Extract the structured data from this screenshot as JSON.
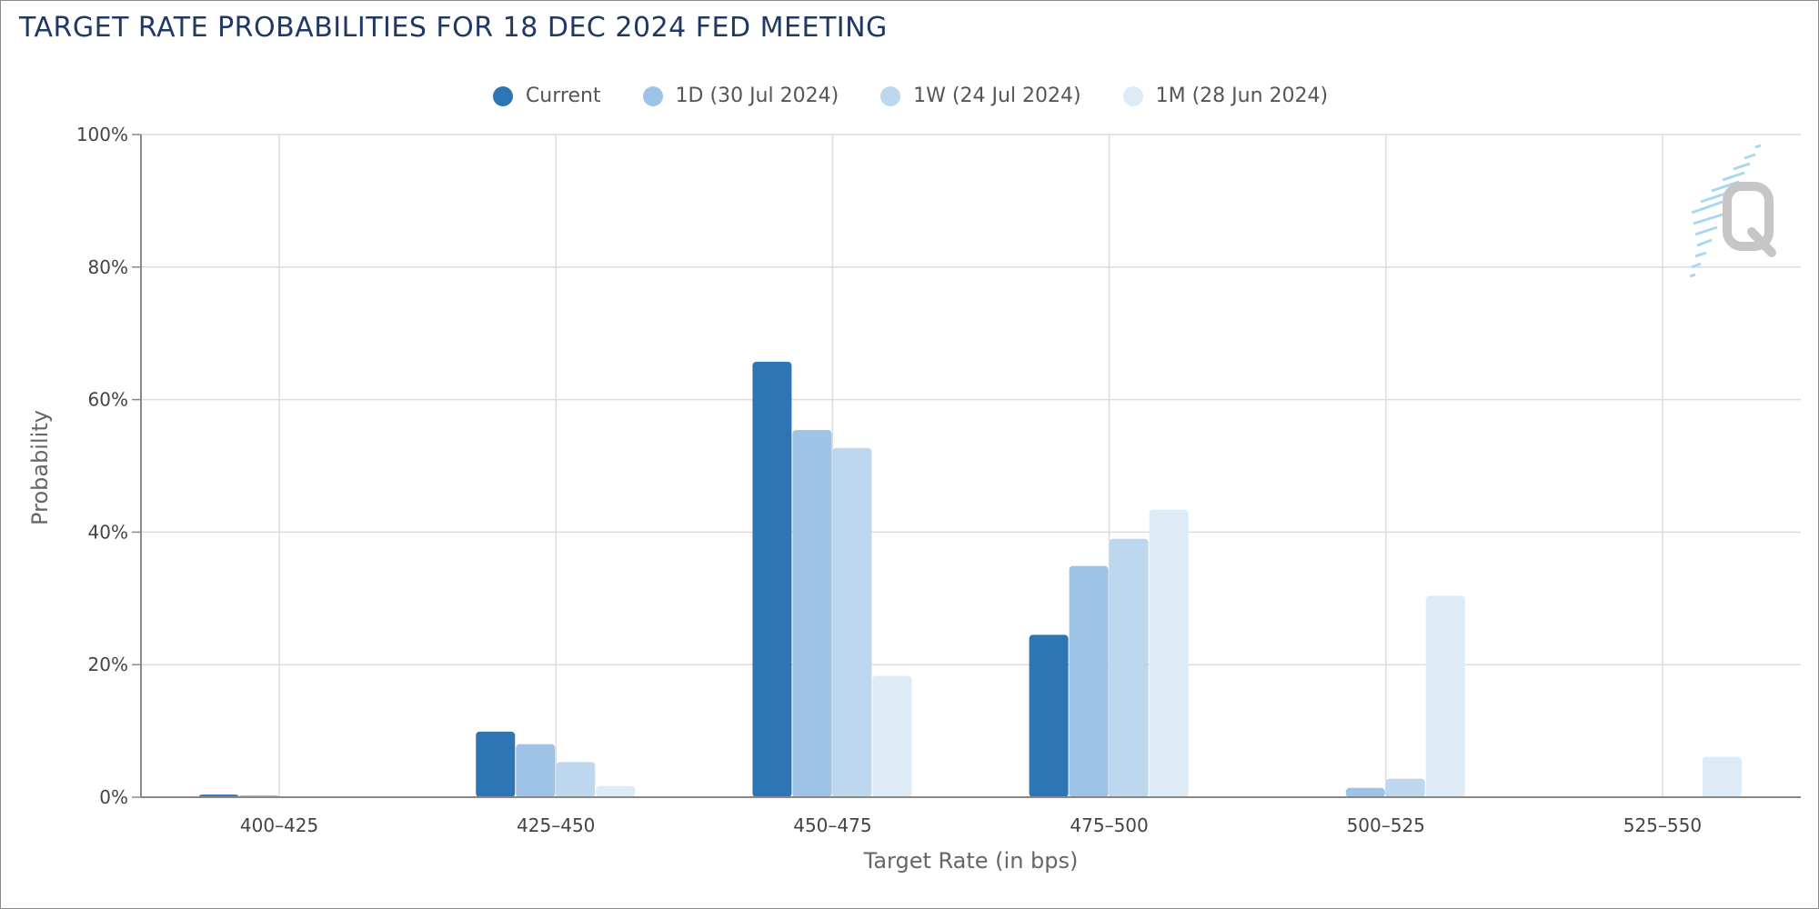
{
  "chart_data": {
    "type": "bar",
    "title": "TARGET RATE PROBABILITIES FOR 18 DEC 2024 FED MEETING",
    "xlabel": "Target Rate (in bps)",
    "ylabel": "Probability",
    "categories": [
      "400–425",
      "425–450",
      "450–475",
      "475–500",
      "500–525",
      "525–550"
    ],
    "ylim": [
      0,
      100
    ],
    "yticks": [
      "0%",
      "20%",
      "40%",
      "60%",
      "80%",
      "100%"
    ],
    "grid": true,
    "legend_position": "top-center",
    "series": [
      {
        "name": "Current",
        "color": "#2e75b6",
        "values": [
          0.4,
          9.9,
          65.7,
          24.5,
          0.0,
          0.0
        ]
      },
      {
        "name": "1D (30 Jul 2024)",
        "color": "#9dc3e6",
        "values": [
          0.3,
          8.0,
          55.4,
          34.9,
          1.4,
          0.0
        ]
      },
      {
        "name": "1W (24 Jul 2024)",
        "color": "#bdd7ee",
        "values": [
          0.0,
          5.3,
          52.7,
          39.0,
          2.8,
          0.0
        ]
      },
      {
        "name": "1M (28 Jun 2024)",
        "color": "#ddebf7",
        "values": [
          0.0,
          1.7,
          18.3,
          43.4,
          30.4,
          6.1
        ]
      }
    ],
    "watermark_icon": "q-logo-icon"
  }
}
